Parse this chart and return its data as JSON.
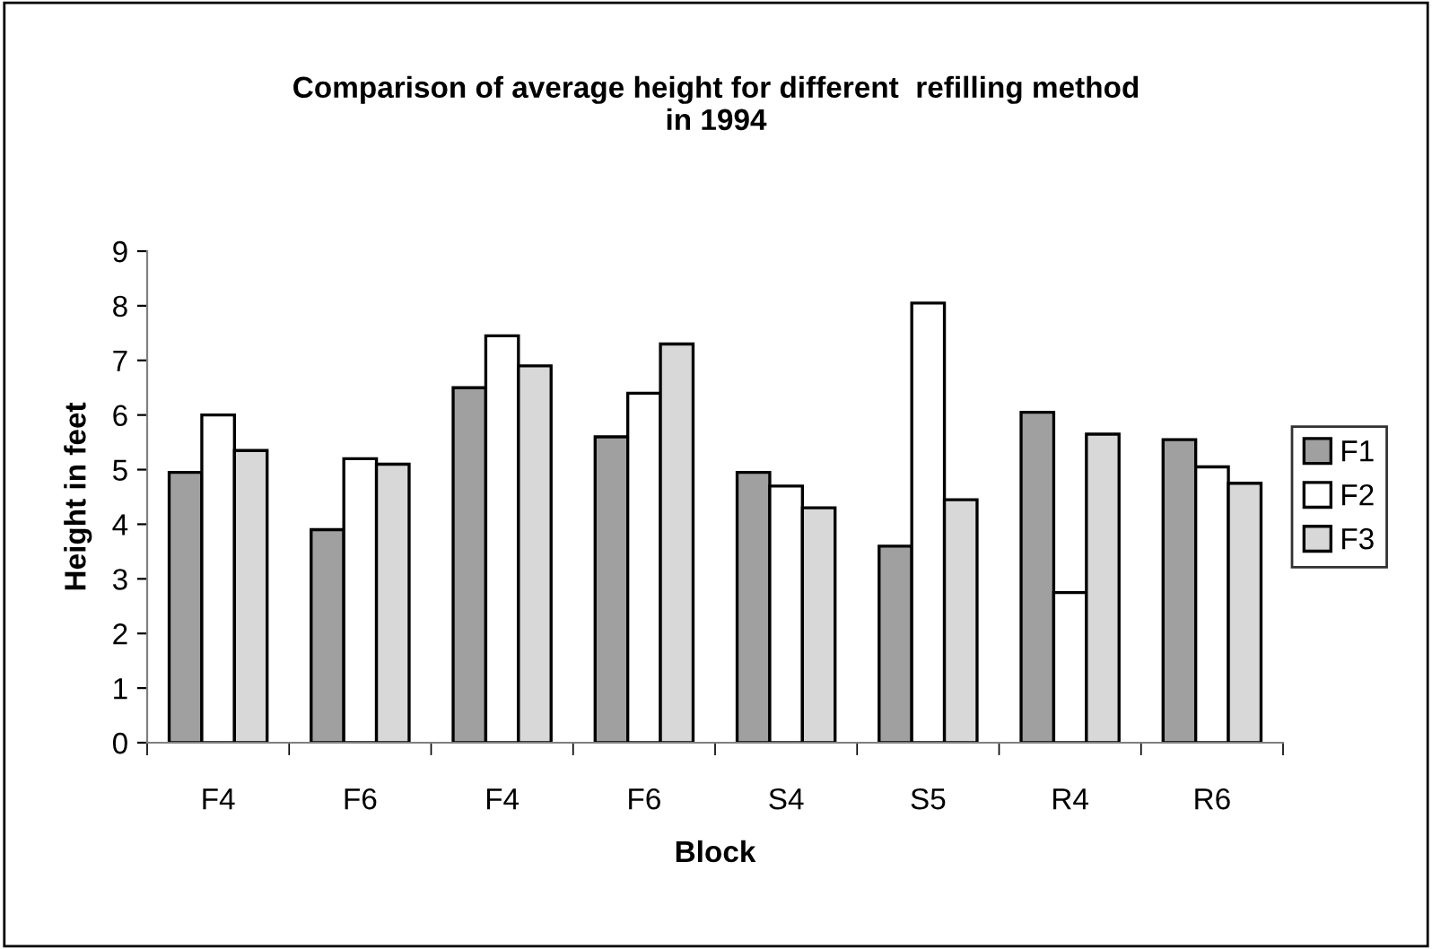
{
  "chart_data": {
    "type": "bar",
    "title": "Comparison of average height for different  refilling method\nin 1994",
    "xlabel": "Block",
    "ylabel": "Height in feet",
    "categories": [
      "F4",
      "F6",
      "F4",
      "F6",
      "S4",
      "S5",
      "R4",
      "R6"
    ],
    "series": [
      {
        "name": "F1",
        "color": "#a0a0a0",
        "values": [
          4.95,
          3.9,
          6.5,
          5.6,
          4.95,
          3.6,
          6.05,
          5.55
        ]
      },
      {
        "name": "F2",
        "color": "#ffffff",
        "values": [
          6.0,
          5.2,
          7.45,
          6.4,
          4.7,
          8.05,
          2.75,
          5.05
        ]
      },
      {
        "name": "F3",
        "color": "#d8d8d8",
        "values": [
          5.35,
          5.1,
          6.9,
          7.3,
          4.3,
          4.45,
          5.65,
          4.75
        ]
      }
    ],
    "ylim": [
      0,
      9
    ],
    "yticks": [
      0,
      1,
      2,
      3,
      4,
      5,
      6,
      7,
      8,
      9
    ],
    "grid": false,
    "legend": "right"
  }
}
